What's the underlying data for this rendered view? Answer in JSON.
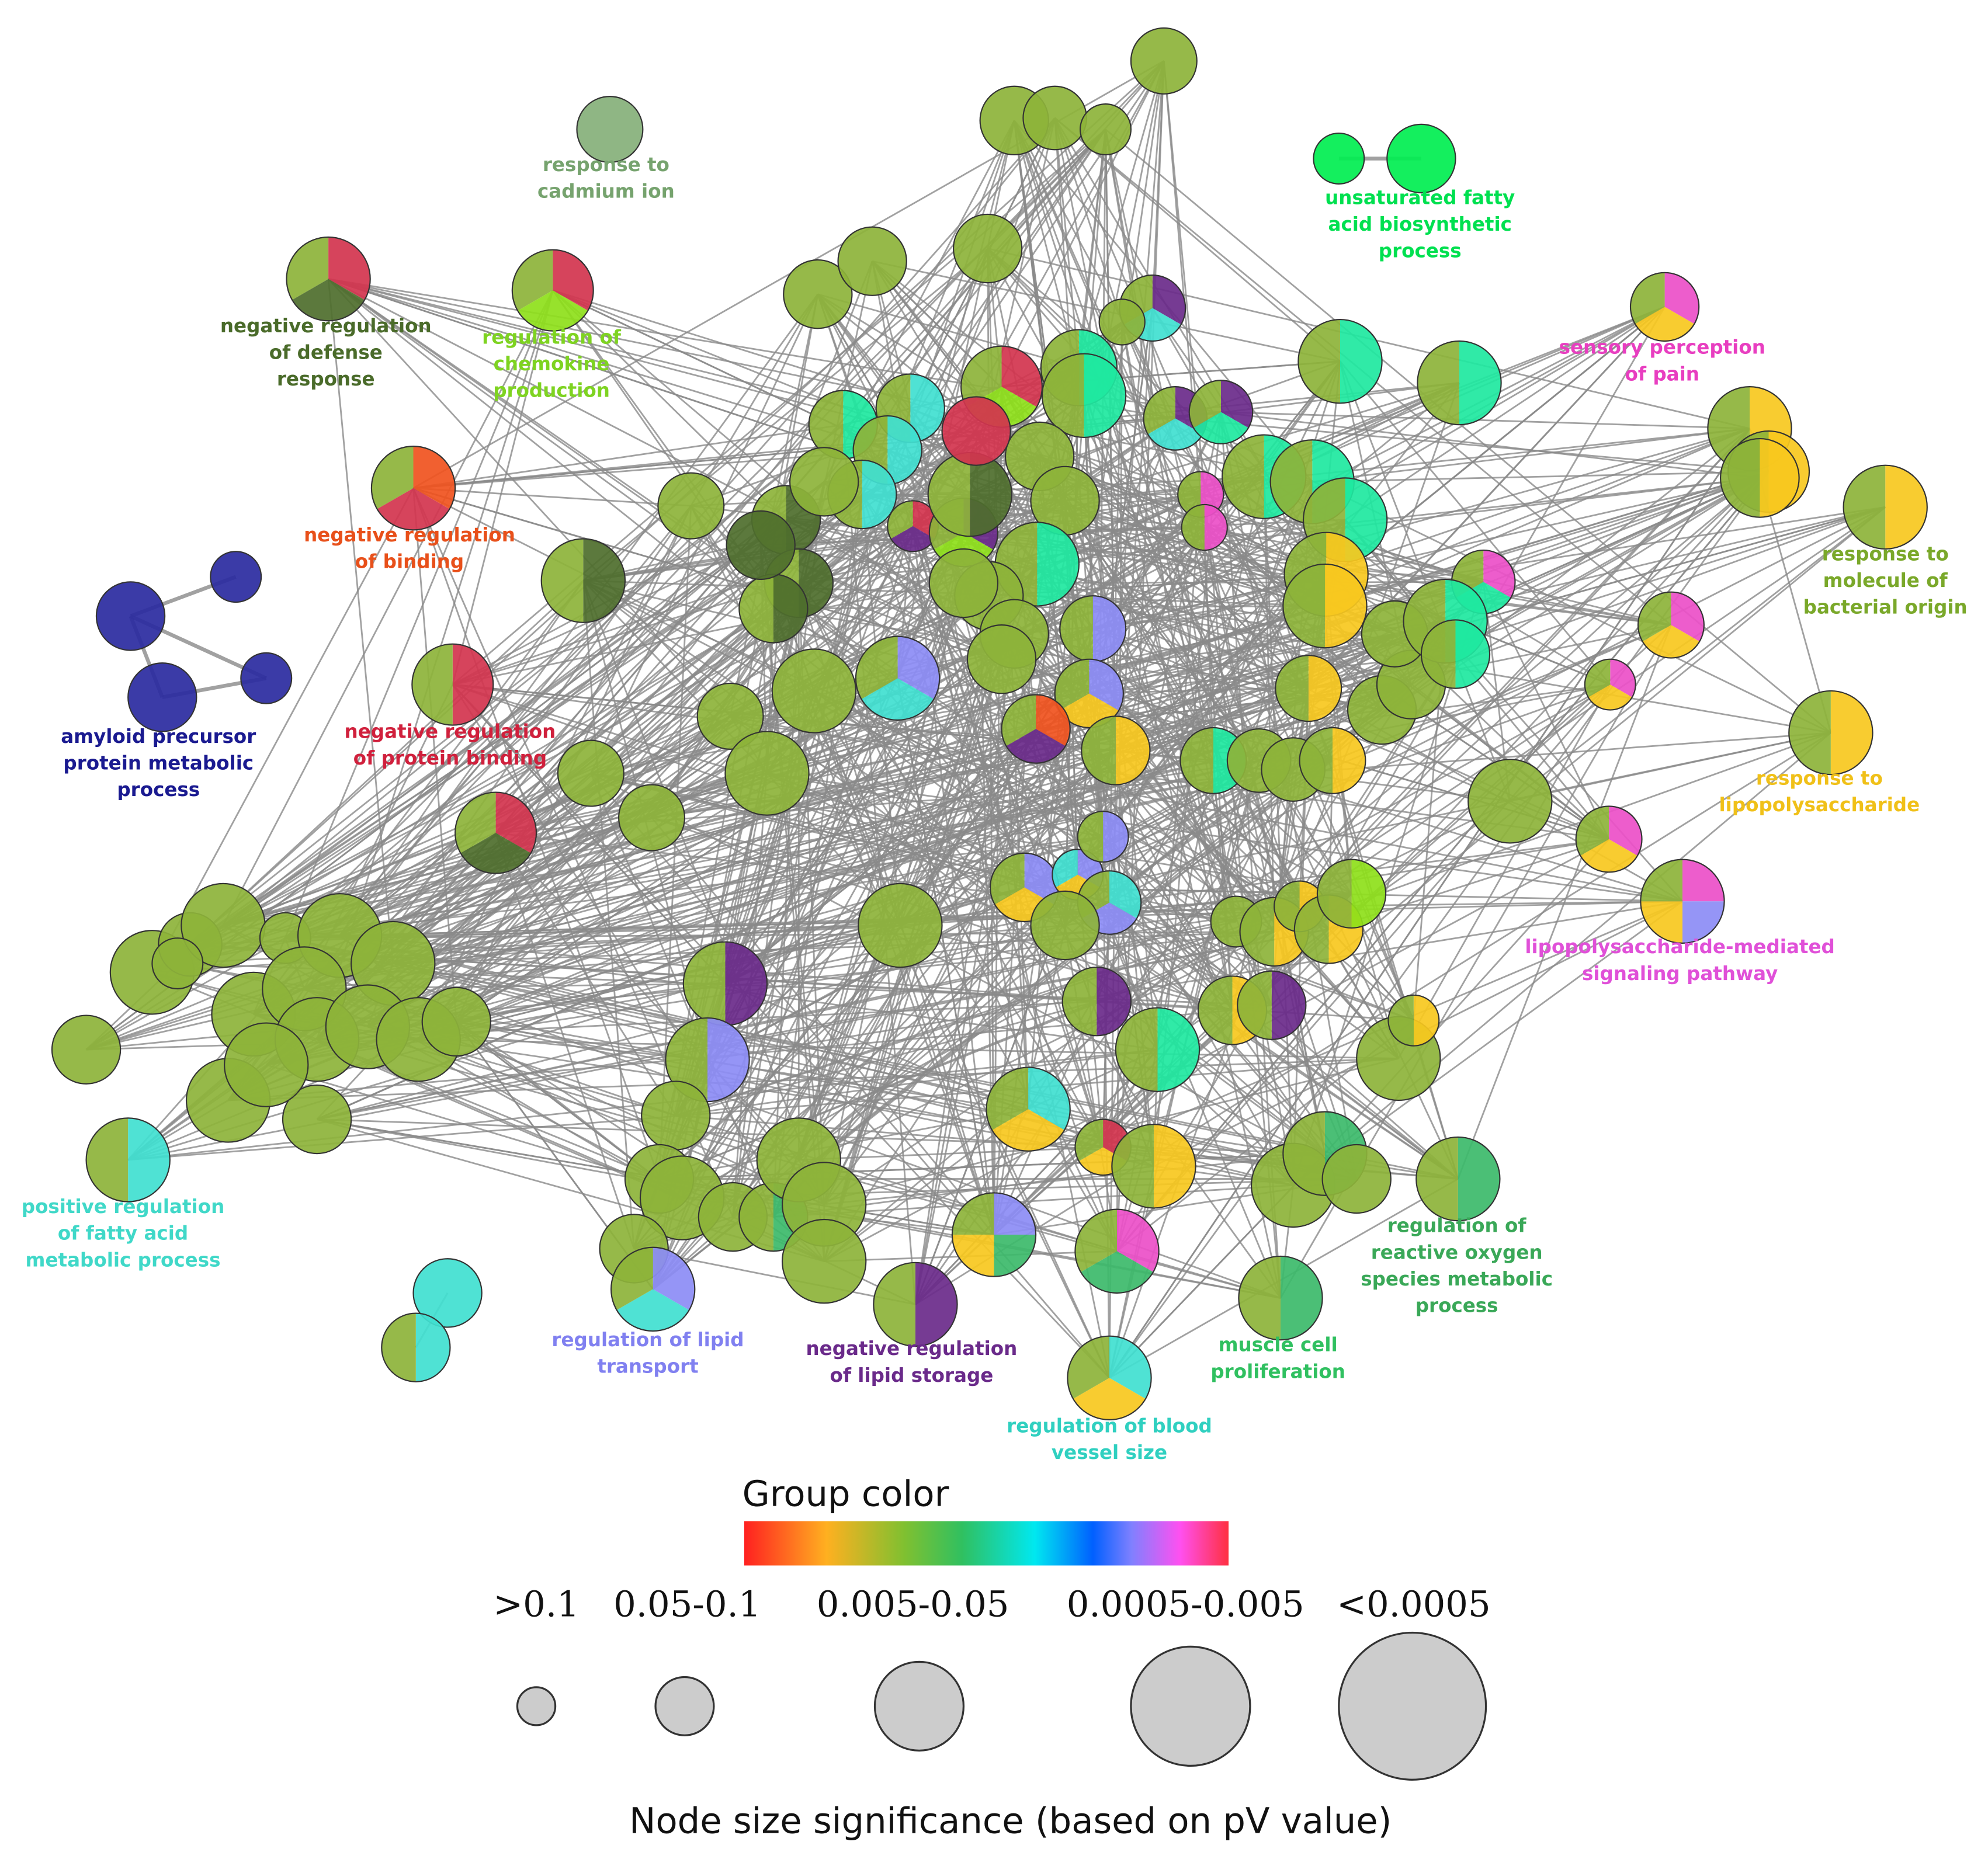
{
  "labels": [
    {
      "lines": [
        "response to",
        "cadmium ion"
      ],
      "color": "#76a36e"
    },
    {
      "lines": [
        "unsaturated fatty",
        "acid biosynthetic",
        "process"
      ],
      "color": "#00e050"
    },
    {
      "lines": [
        "negative regulation",
        "of defense",
        "response"
      ],
      "color": "#4a6b2a"
    },
    {
      "lines": [
        "regulation of",
        "chemokine",
        "production"
      ],
      "color": "#7ed321"
    },
    {
      "lines": [
        "sensory perception",
        "of pain"
      ],
      "color": "#e83ec0"
    },
    {
      "lines": [
        "negative regulation",
        "of binding"
      ],
      "color": "#e8501a"
    },
    {
      "lines": [
        "amyloid precursor",
        "protein metabolic",
        "process"
      ],
      "color": "#1a1a90"
    },
    {
      "lines": [
        "negative regulation",
        "of protein binding"
      ],
      "color": "#d0203c"
    },
    {
      "lines": [
        "response to",
        "molecule of",
        "bacterial origin"
      ],
      "color": "#7aa82a"
    },
    {
      "lines": [
        "response to",
        "lipopolysaccharide"
      ],
      "color": "#f0c018"
    },
    {
      "lines": [
        "lipopolysaccharide-mediated",
        "signaling pathway"
      ],
      "color": "#e050d8"
    },
    {
      "lines": [
        "positive regulation",
        "of fatty acid",
        "metabolic process"
      ],
      "color": "#40d8c8"
    },
    {
      "lines": [
        "regulation of",
        "reactive oxygen",
        "species metabolic",
        "process"
      ],
      "color": "#3aa858"
    },
    {
      "lines": [
        "regulation of lipid",
        "transport"
      ],
      "color": "#8080f0"
    },
    {
      "lines": [
        "negative regulation",
        "of lipid storage"
      ],
      "color": "#6a2a8a"
    },
    {
      "lines": [
        "muscle cell",
        "proliferation"
      ],
      "color": "#30c060"
    },
    {
      "lines": [
        "regulation of blood",
        "vessel size"
      ],
      "color": "#30d0c0"
    }
  ],
  "legend": {
    "title": "Group color",
    "size_classes": [
      ">0.1",
      "0.05-0.1",
      "0.005-0.05",
      "0.0005-0.005",
      "<0.0005"
    ],
    "caption": "Node size significance (based on pV value)"
  }
}
